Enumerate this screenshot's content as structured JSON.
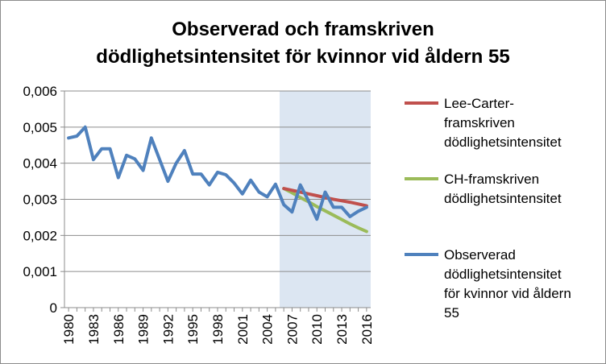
{
  "chart_data": {
    "type": "line",
    "title": "Observerad och framskriven dödlighetsintensitet för kvinnor vid åldern 55",
    "title_lines": [
      "Observerad och framskriven",
      "dödlighetsintensitet för kvinnor vid åldern 55"
    ],
    "xlabel": "",
    "ylabel": "",
    "ylim": [
      0,
      0.006
    ],
    "yticks": [
      "0",
      "0,001",
      "0,002",
      "0,003",
      "0,004",
      "0,005",
      "0,006"
    ],
    "xticks": [
      "1980",
      "1983",
      "1986",
      "1989",
      "1992",
      "1995",
      "1998",
      "2001",
      "2004",
      "2007",
      "2010",
      "2013",
      "2016"
    ],
    "grid": "horizontal",
    "legend_position": "right",
    "shaded_region": {
      "from": 2005.5,
      "to": 2016.5,
      "color": "#dce6f2"
    },
    "x": [
      1980,
      1981,
      1982,
      1983,
      1984,
      1985,
      1986,
      1987,
      1988,
      1989,
      1990,
      1991,
      1992,
      1993,
      1994,
      1995,
      1996,
      1997,
      1998,
      1999,
      2000,
      2001,
      2002,
      2003,
      2004,
      2005,
      2006,
      2007,
      2008,
      2009,
      2010,
      2011,
      2012,
      2013,
      2014,
      2015,
      2016
    ],
    "series": [
      {
        "name": "Lee-Carter-framskriven dödlighetsintensitet",
        "legend_lines": [
          "Lee-Carter-",
          "framskriven",
          "dödlighetsintensitet"
        ],
        "color": "#c0504d",
        "x": [
          2006,
          2007,
          2008,
          2009,
          2010,
          2011,
          2012,
          2013,
          2014,
          2015,
          2016
        ],
        "values": [
          0.0033,
          0.00325,
          0.0032,
          0.00315,
          0.0031,
          0.00305,
          0.003,
          0.00296,
          0.00292,
          0.00287,
          0.00282
        ]
      },
      {
        "name": "CH-framskriven dödlighetsintensitet",
        "legend_lines": [
          "CH-framskriven",
          "dödlighetsintensitet"
        ],
        "color": "#9bbb59",
        "x": [
          2006,
          2007,
          2008,
          2009,
          2010,
          2011,
          2012,
          2013,
          2014,
          2015,
          2016
        ],
        "values": [
          0.0033,
          0.00318,
          0.00305,
          0.00293,
          0.0028,
          0.00268,
          0.00256,
          0.00244,
          0.00232,
          0.00221,
          0.00211
        ]
      },
      {
        "name": "Observerad dödlighetsintensitet för kvinnor vid åldern 55",
        "legend_lines": [
          "Observerad",
          "dödlighetsintensitet",
          "för kvinnor vid åldern",
          "55"
        ],
        "color": "#4f81bd",
        "x": [
          1980,
          1981,
          1982,
          1983,
          1984,
          1985,
          1986,
          1987,
          1988,
          1989,
          1990,
          1991,
          1992,
          1993,
          1994,
          1995,
          1996,
          1997,
          1998,
          1999,
          2000,
          2001,
          2002,
          2003,
          2004,
          2005,
          2006,
          2007,
          2008,
          2009,
          2010,
          2011,
          2012,
          2013,
          2014,
          2015,
          2016
        ],
        "values": [
          0.0047,
          0.00475,
          0.005,
          0.0041,
          0.0044,
          0.0044,
          0.0036,
          0.00422,
          0.00412,
          0.0038,
          0.0047,
          0.0041,
          0.0035,
          0.004,
          0.00435,
          0.0037,
          0.0037,
          0.0034,
          0.00375,
          0.00368,
          0.00345,
          0.00315,
          0.00353,
          0.0032,
          0.00307,
          0.00342,
          0.00285,
          0.00265,
          0.0034,
          0.00295,
          0.00245,
          0.0032,
          0.00278,
          0.00278,
          0.00252,
          0.00267,
          0.00278
        ]
      }
    ]
  }
}
